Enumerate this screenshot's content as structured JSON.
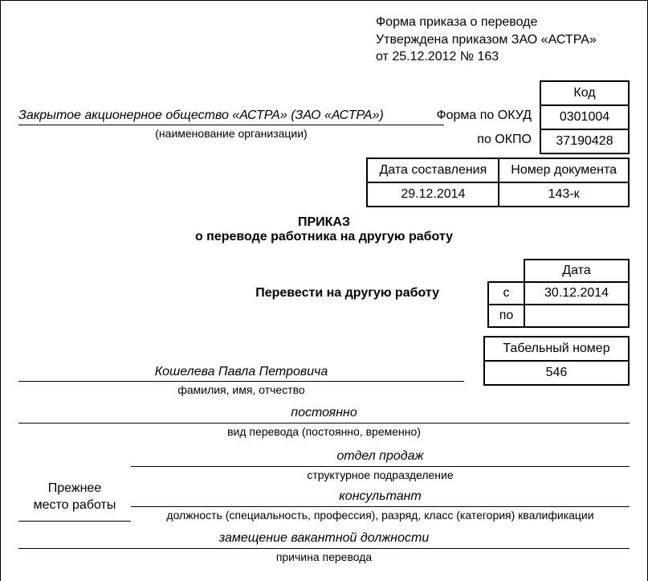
{
  "approval": {
    "line1": "Форма приказа о переводе",
    "line2": "Утверждена приказом  ЗАО «АСТРА»",
    "line3": "от 25.12.2012 № 163"
  },
  "codes": {
    "header": "Код",
    "okud_label": "Форма по ОКУД",
    "okud": "0301004",
    "okpo_label": "по ОКПО",
    "okpo": "37190428"
  },
  "org": {
    "name": "Закрытое акционерное общество «АСТРА» (ЗАО «АСТРА»)",
    "caption": "(наименование организации)"
  },
  "docMeta": {
    "date_header": "Дата составления",
    "date": "29.12.2014",
    "num_header": "Номер документа",
    "num": "143-к"
  },
  "title": {
    "line1": "ПРИКАЗ",
    "line2": "о переводе работника на другую работу"
  },
  "transfer": {
    "label": "Перевести на другую работу",
    "date_header": "Дата",
    "from_label": "с",
    "from": "30.12.2014",
    "to_label": "по",
    "to": ""
  },
  "tabnum": {
    "header": "Табельный номер",
    "value": "546"
  },
  "fio": {
    "value": "Кошелева Павла Петровича",
    "caption": "фамилия, имя, отчество"
  },
  "transferType": {
    "value": "постоянно",
    "caption": "вид перевода (постоянно, временно)"
  },
  "previous": {
    "label1": "Прежнее",
    "label2": "место работы",
    "unit_value": "отдел продаж",
    "unit_caption": "структурное подразделение",
    "pos_value": "консультант",
    "pos_caption": "должность (специальность, профессия), разряд, класс (категория) квалификации"
  },
  "reason": {
    "value": "замещение вакантной должности",
    "caption": "причина перевода"
  },
  "style": {
    "font_main": 16,
    "font_caption": 14,
    "border_color": "#000000",
    "bg": "#ffffff"
  }
}
